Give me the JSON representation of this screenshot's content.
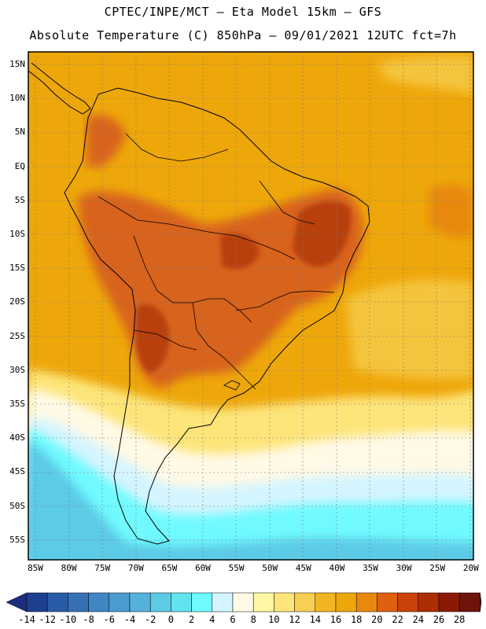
{
  "title_line1": "CPTEC/INPE/MCT –  Eta Model 15km – GFS",
  "title_line2": "Absolute Temperature (C) 850hPa – 09/01/2021 12UTC fct=7h",
  "lat_labels": [
    "15N",
    "10N",
    "5N",
    "EQ",
    "5S",
    "10S",
    "15S",
    "20S",
    "25S",
    "30S",
    "35S",
    "40S",
    "45S",
    "50S",
    "55S"
  ],
  "lon_labels": [
    "85W",
    "80W",
    "75W",
    "70W",
    "65W",
    "60W",
    "55W",
    "50W",
    "45W",
    "40W",
    "35W",
    "30W",
    "25W",
    "20W"
  ],
  "colorbar": {
    "labels": [
      "-14",
      "-12",
      "-10",
      "-8",
      "-6",
      "-4",
      "-2",
      "0",
      "2",
      "4",
      "6",
      "8",
      "10",
      "12",
      "14",
      "16",
      "18",
      "20",
      "22",
      "24",
      "26",
      "28"
    ],
    "colors": [
      "#1d3f8f",
      "#2a5ba6",
      "#3570b5",
      "#3f86c4",
      "#4a9bd0",
      "#54b1dc",
      "#5ccbe6",
      "#62e3ef",
      "#6ffaff",
      "#d4f5ff",
      "#fff9e6",
      "#fff7a3",
      "#fde57a",
      "#f7cf52",
      "#f1b521",
      "#eea70a",
      "#e8890e",
      "#de6010",
      "#c84209",
      "#ad2d05",
      "#8a1a03",
      "#6e140a"
    ],
    "left_arrow_color": "#1c2e7e",
    "right_arrow_color": "#6b0a2a"
  },
  "palette": {
    "ocean_warm": "#eea70a",
    "land_hot": "#d8641a",
    "land_hotter": "#b8400c",
    "ocean_mild": "#f5c43c",
    "ocean_cool": "#fde57a",
    "ocean_pale": "#fff9e6",
    "ocean_cold": "#d4f5ff",
    "ocean_colder": "#6ffaff",
    "ocean_coldest": "#5ccbe6"
  }
}
